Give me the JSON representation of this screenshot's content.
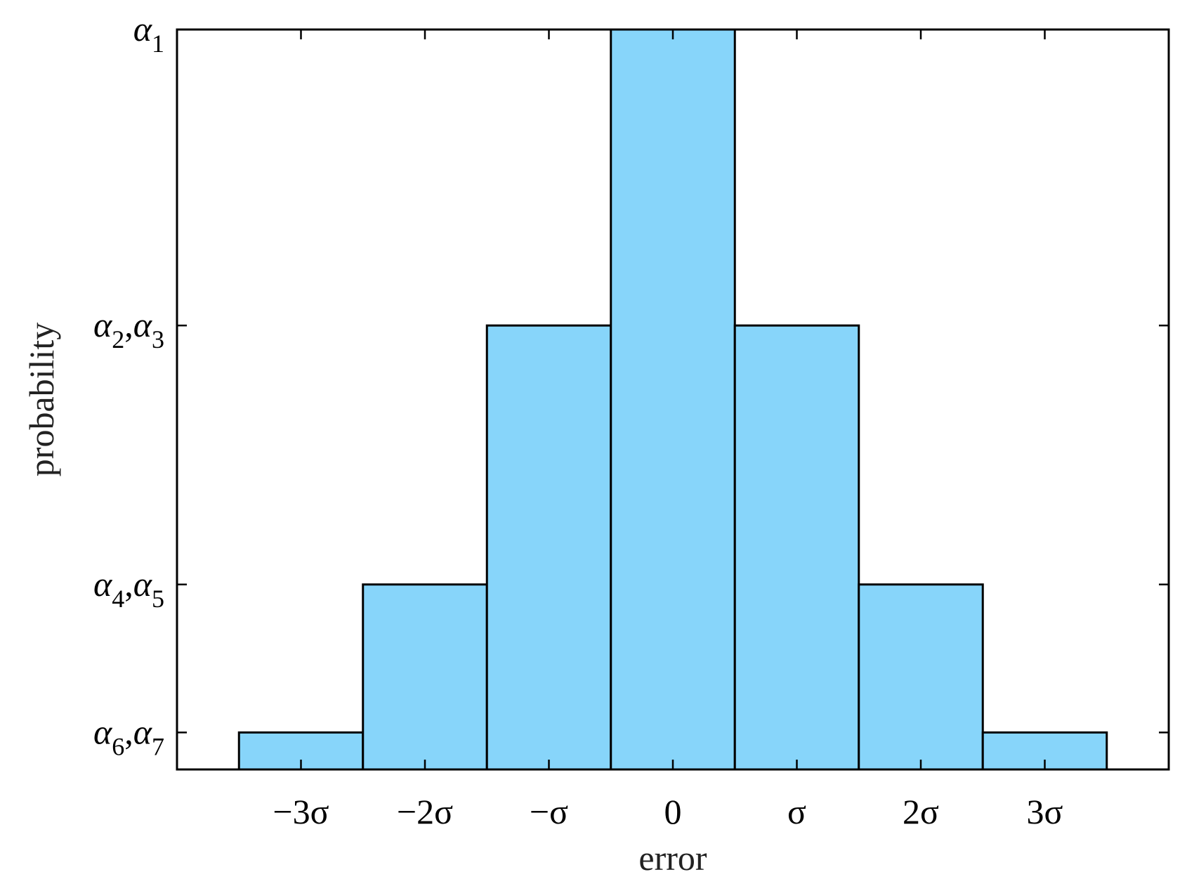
{
  "chart_data": {
    "type": "bar",
    "title": "",
    "xlabel": "error",
    "ylabel": "probability",
    "xlim": [
      -4.0,
      4.0
    ],
    "ylim": [
      0.2,
      1.0
    ],
    "categories": [
      -3,
      -2,
      -1,
      0,
      1,
      2,
      3
    ],
    "x_tick_labels": [
      "−3σ",
      "−2σ",
      "−σ",
      "0",
      "σ",
      "2σ",
      "3σ"
    ],
    "values": [
      0.24,
      0.4,
      0.68,
      1.0,
      0.68,
      0.4,
      0.24
    ],
    "y_ticks": [
      {
        "value": 1.0,
        "base": "α",
        "sub": "1"
      },
      {
        "value": 0.68,
        "base": "α",
        "sub": "2",
        "base2": "α",
        "sub2": "3"
      },
      {
        "value": 0.4,
        "base": "α",
        "sub": "4",
        "base2": "α",
        "sub2": "5"
      },
      {
        "value": 0.24,
        "base": "α",
        "sub": "6",
        "base2": "α",
        "sub2": "7"
      }
    ],
    "grid": false,
    "colors": {
      "bar_fill": "#87d5fa",
      "bar_edge": "#000000",
      "axis": "#000000"
    }
  }
}
